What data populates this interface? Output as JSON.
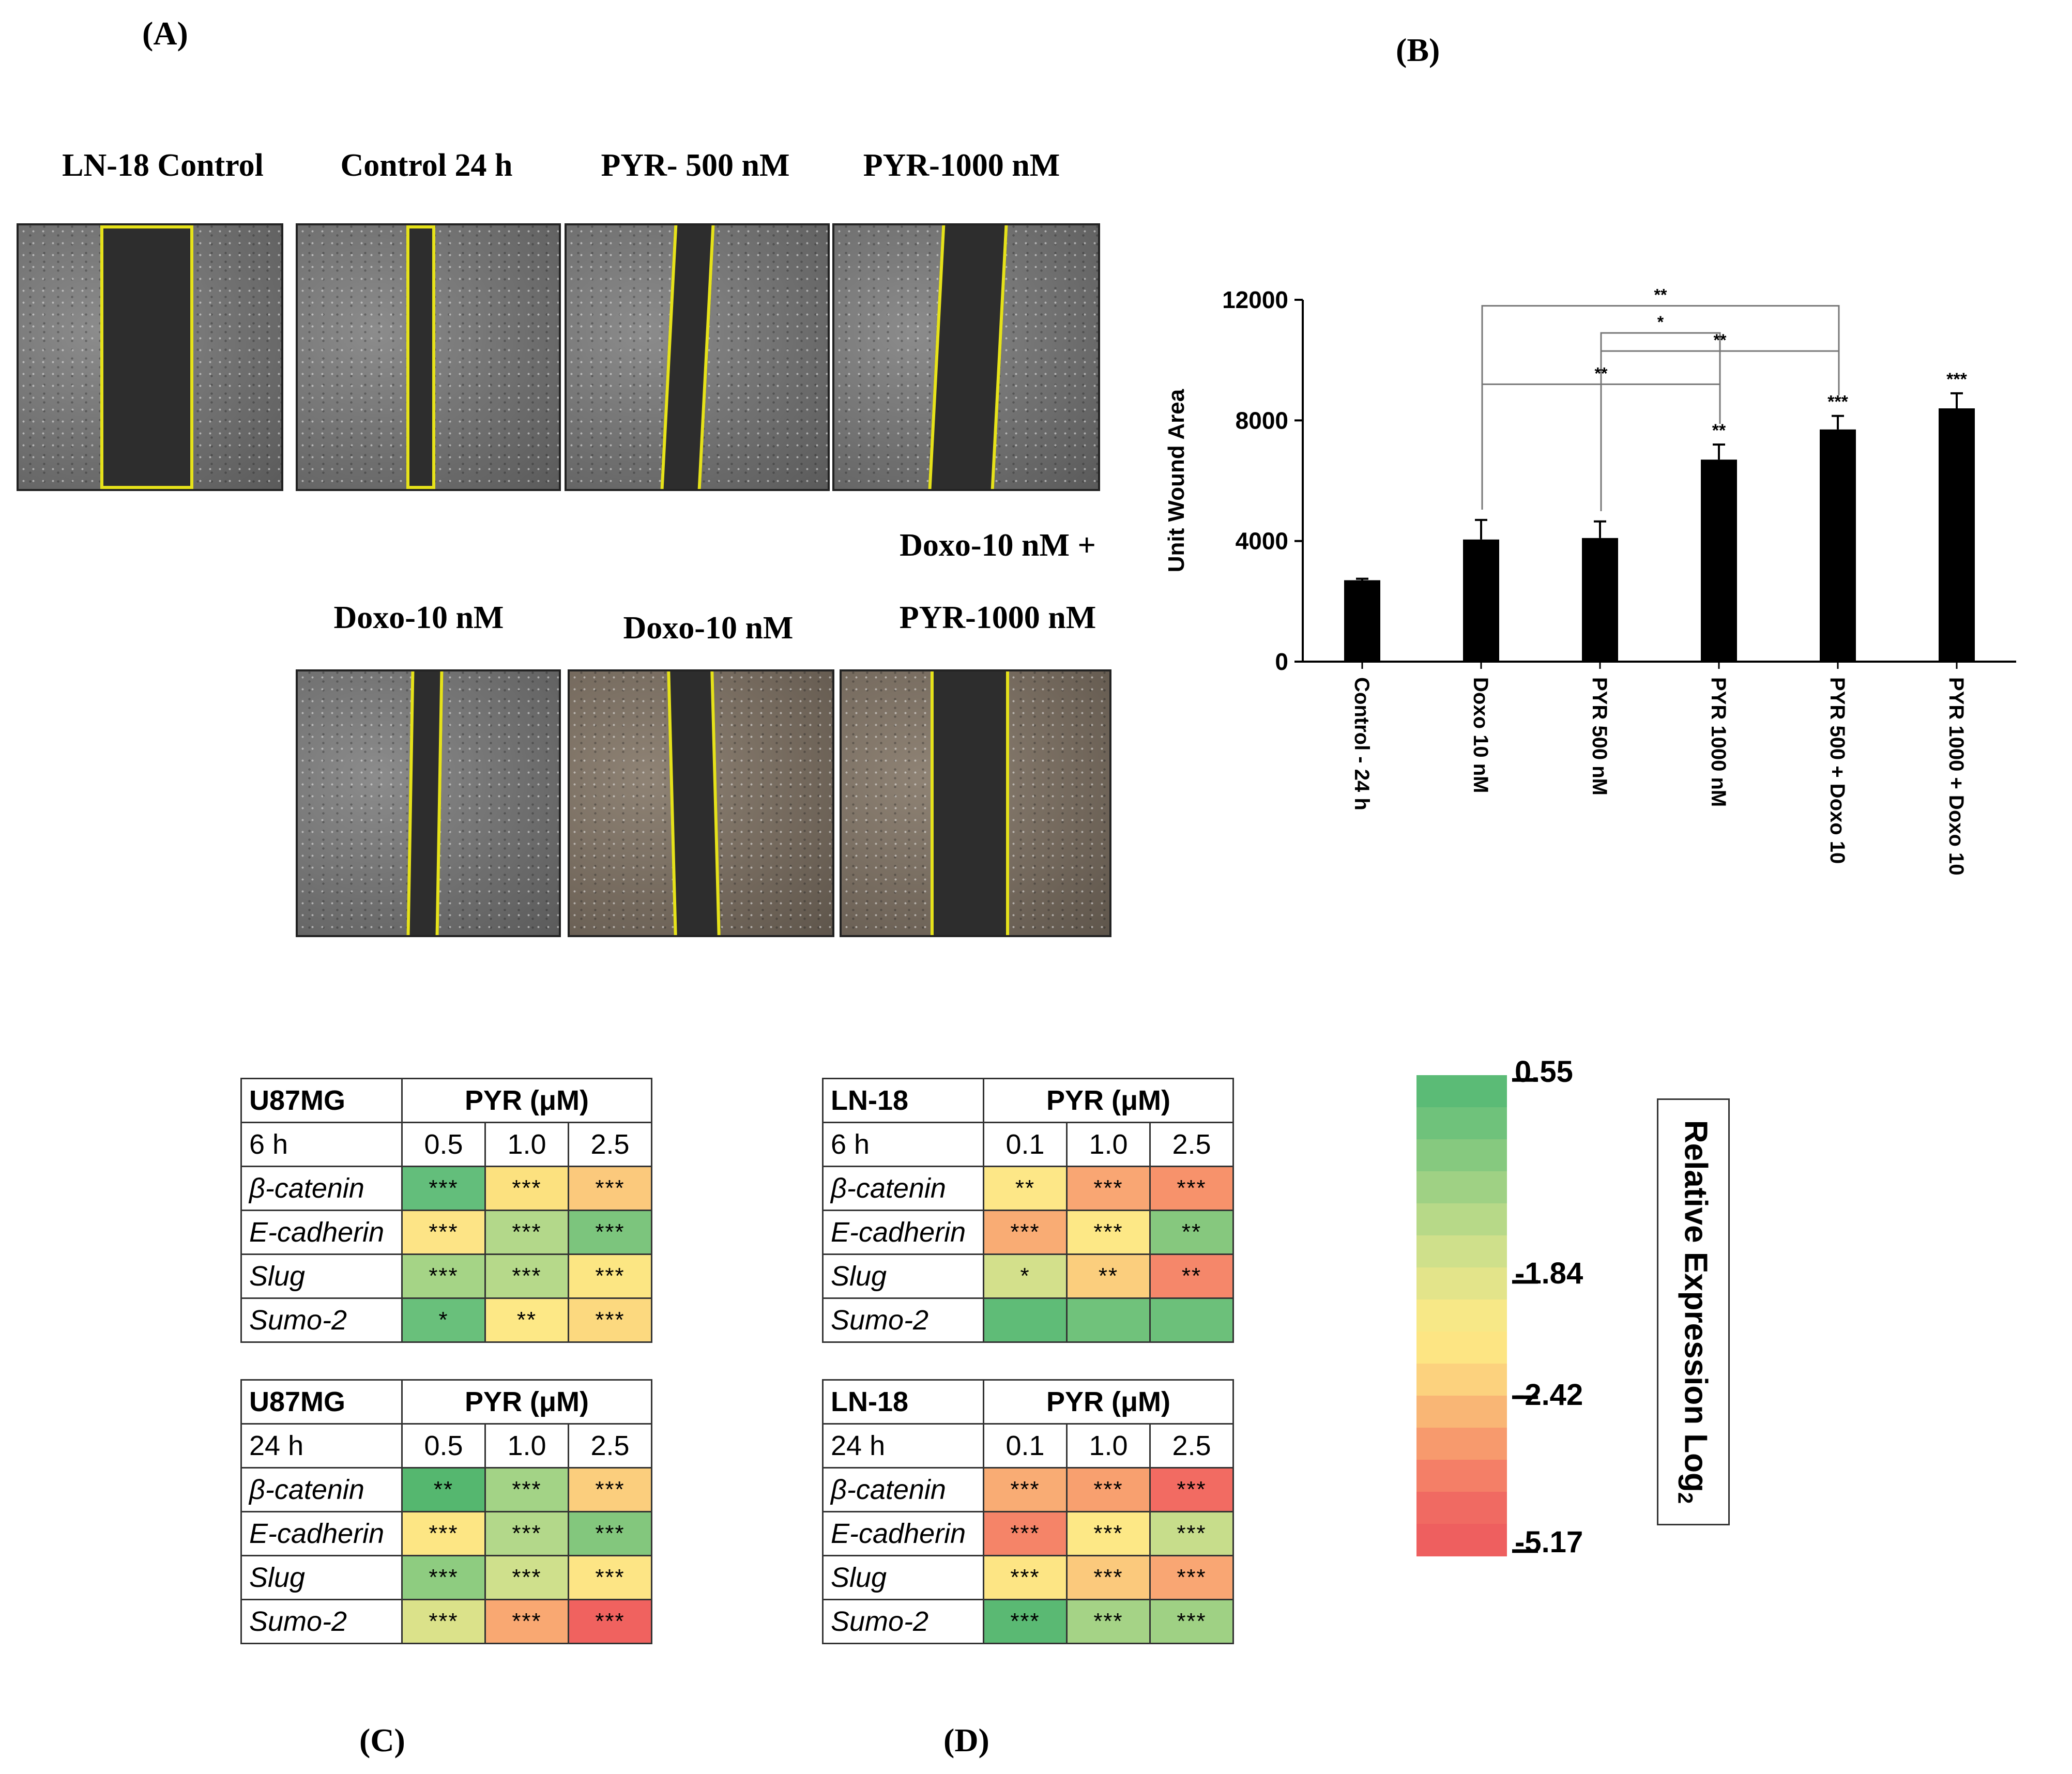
{
  "panels": {
    "A": "(A)",
    "B": "(B)",
    "C": "(C)",
    "D": "(D)"
  },
  "images": [
    {
      "caption": "LN-18 Control",
      "tone": "gray"
    },
    {
      "caption": "Control 24 h",
      "tone": "gray"
    },
    {
      "caption": "PYR- 500 nM",
      "tone": "gray"
    },
    {
      "caption": "PYR-1000 nM",
      "tone": "gray"
    },
    {
      "caption": "Doxo-10 nM",
      "tone": "gray"
    },
    {
      "caption": "Doxo-10 nM",
      "tone": "tan"
    },
    {
      "caption_line1": "Doxo-10 nM +",
      "caption_line2": "PYR-1000 nM",
      "tone": "tan"
    }
  ],
  "chart_data": {
    "type": "bar",
    "title": "",
    "ylabel": "Unit Wound Area",
    "xlabel": "",
    "ylim": [
      0,
      12000
    ],
    "yticks": [
      0,
      4000,
      8000,
      12000
    ],
    "yticklabels": [
      "0",
      "4000",
      "8000",
      "12000"
    ],
    "categories": [
      "Control - 24 h",
      "Doxo 10  nM",
      "PYR 500 nM",
      "PYR 1000 nM",
      "PYR 500 + Doxo 10",
      "PYR 1000 + Doxo 10"
    ],
    "values": [
      2700,
      4050,
      4100,
      6700,
      7700,
      8400
    ],
    "errors": [
      50,
      650,
      550,
      500,
      450,
      500
    ],
    "bar_labels": [
      "",
      "",
      "",
      "**",
      "***",
      "***"
    ],
    "brackets": [
      {
        "from": 1,
        "to": 4,
        "label": "**",
        "y": 11800
      },
      {
        "from": 2,
        "to": 3,
        "label": "*",
        "y": 10900
      },
      {
        "from": 2,
        "to": 4,
        "label": "**",
        "y": 10300
      },
      {
        "from": 1,
        "to": 3,
        "label": "**",
        "y": 9200
      }
    ]
  },
  "tables": [
    {
      "cell_line": "U87MG",
      "time": "6 h",
      "pyr_header": "PYR (μM)",
      "doses": [
        "0.5",
        "1.0",
        "2.5"
      ],
      "rows": [
        {
          "gene": "β-catenin",
          "cells": [
            {
              "sig": "***",
              "color": "#63be7b"
            },
            {
              "sig": "***",
              "color": "#fce17f"
            },
            {
              "sig": "***",
              "color": "#fbc97c"
            }
          ]
        },
        {
          "gene": "E-cadherin",
          "cells": [
            {
              "sig": "***",
              "color": "#fde486"
            },
            {
              "sig": "***",
              "color": "#b3d88a"
            },
            {
              "sig": "***",
              "color": "#7cc57d"
            }
          ]
        },
        {
          "gene": "Slug",
          "cells": [
            {
              "sig": "***",
              "color": "#a5d486"
            },
            {
              "sig": "***",
              "color": "#b6d98a"
            },
            {
              "sig": "***",
              "color": "#fce683"
            }
          ]
        },
        {
          "gene": "Sumo-2",
          "cells": [
            {
              "sig": "*",
              "color": "#69c07b"
            },
            {
              "sig": "**",
              "color": "#fde886"
            },
            {
              "sig": "***",
              "color": "#fcd97f"
            }
          ]
        }
      ]
    },
    {
      "cell_line": "U87MG",
      "time": "24 h",
      "pyr_header": "PYR (μM)",
      "doses": [
        "0.5",
        "1.0",
        "2.5"
      ],
      "rows": [
        {
          "gene": "β-catenin",
          "cells": [
            {
              "sig": "**",
              "color": "#55b76f"
            },
            {
              "sig": "***",
              "color": "#a3d386"
            },
            {
              "sig": "***",
              "color": "#fbce7d"
            }
          ]
        },
        {
          "gene": "E-cadherin",
          "cells": [
            {
              "sig": "***",
              "color": "#fde684"
            },
            {
              "sig": "***",
              "color": "#b3d88a"
            },
            {
              "sig": "***",
              "color": "#83c77d"
            }
          ]
        },
        {
          "gene": "Slug",
          "cells": [
            {
              "sig": "***",
              "color": "#8ecc80"
            },
            {
              "sig": "***",
              "color": "#cfe08c"
            },
            {
              "sig": "***",
              "color": "#fde585"
            }
          ]
        },
        {
          "gene": "Sumo-2",
          "cells": [
            {
              "sig": "***",
              "color": "#dbe28a"
            },
            {
              "sig": "***",
              "color": "#f9a872"
            },
            {
              "sig": "***",
              "color": "#f0625f"
            }
          ]
        }
      ]
    },
    {
      "cell_line": "LN-18",
      "time": "6 h",
      "pyr_header": "PYR (μM)",
      "doses": [
        "0.1",
        "1.0",
        "2.5"
      ],
      "rows": [
        {
          "gene": "β-catenin",
          "cells": [
            {
              "sig": "**",
              "color": "#fde787"
            },
            {
              "sig": "***",
              "color": "#f9a673"
            },
            {
              "sig": "***",
              "color": "#f7926b"
            }
          ]
        },
        {
          "gene": "E-cadherin",
          "cells": [
            {
              "sig": "***",
              "color": "#f9ac74"
            },
            {
              "sig": "***",
              "color": "#fde886"
            },
            {
              "sig": "**",
              "color": "#86c87e"
            }
          ]
        },
        {
          "gene": "Slug",
          "cells": [
            {
              "sig": "*",
              "color": "#d3e08b"
            },
            {
              "sig": "**",
              "color": "#fbce7d"
            },
            {
              "sig": "**",
              "color": "#f5876a"
            }
          ]
        },
        {
          "gene": "Sumo-2",
          "cells": [
            {
              "sig": "",
              "color": "#5fbc77"
            },
            {
              "sig": "",
              "color": "#70c27b"
            },
            {
              "sig": "",
              "color": "#6cc07a"
            }
          ]
        }
      ]
    },
    {
      "cell_line": "LN-18",
      "time": "24 h",
      "pyr_header": "PYR (μM)",
      "doses": [
        "0.1",
        "1.0",
        "2.5"
      ],
      "rows": [
        {
          "gene": "β-catenin",
          "cells": [
            {
              "sig": "***",
              "color": "#f9ac74"
            },
            {
              "sig": "***",
              "color": "#f8a06f"
            },
            {
              "sig": "***",
              "color": "#f26b62"
            }
          ]
        },
        {
          "gene": "E-cadherin",
          "cells": [
            {
              "sig": "***",
              "color": "#f58468"
            },
            {
              "sig": "***",
              "color": "#fde886"
            },
            {
              "sig": "***",
              "color": "#c7dd8b"
            }
          ]
        },
        {
          "gene": "Slug",
          "cells": [
            {
              "sig": "***",
              "color": "#fde584"
            },
            {
              "sig": "***",
              "color": "#fbc97c"
            },
            {
              "sig": "***",
              "color": "#f9a673"
            }
          ]
        },
        {
          "gene": "Sumo-2",
          "cells": [
            {
              "sig": "***",
              "color": "#5ab973"
            },
            {
              "sig": "***",
              "color": "#a5d386"
            },
            {
              "sig": "***",
              "color": "#9fd184"
            }
          ]
        }
      ]
    }
  ],
  "colorbar": {
    "ticks": [
      "0.55",
      "-1.84",
      "-2.42",
      "-5.17"
    ],
    "legend_title": "Relative Expression Log",
    "legend_subscript": "2"
  }
}
